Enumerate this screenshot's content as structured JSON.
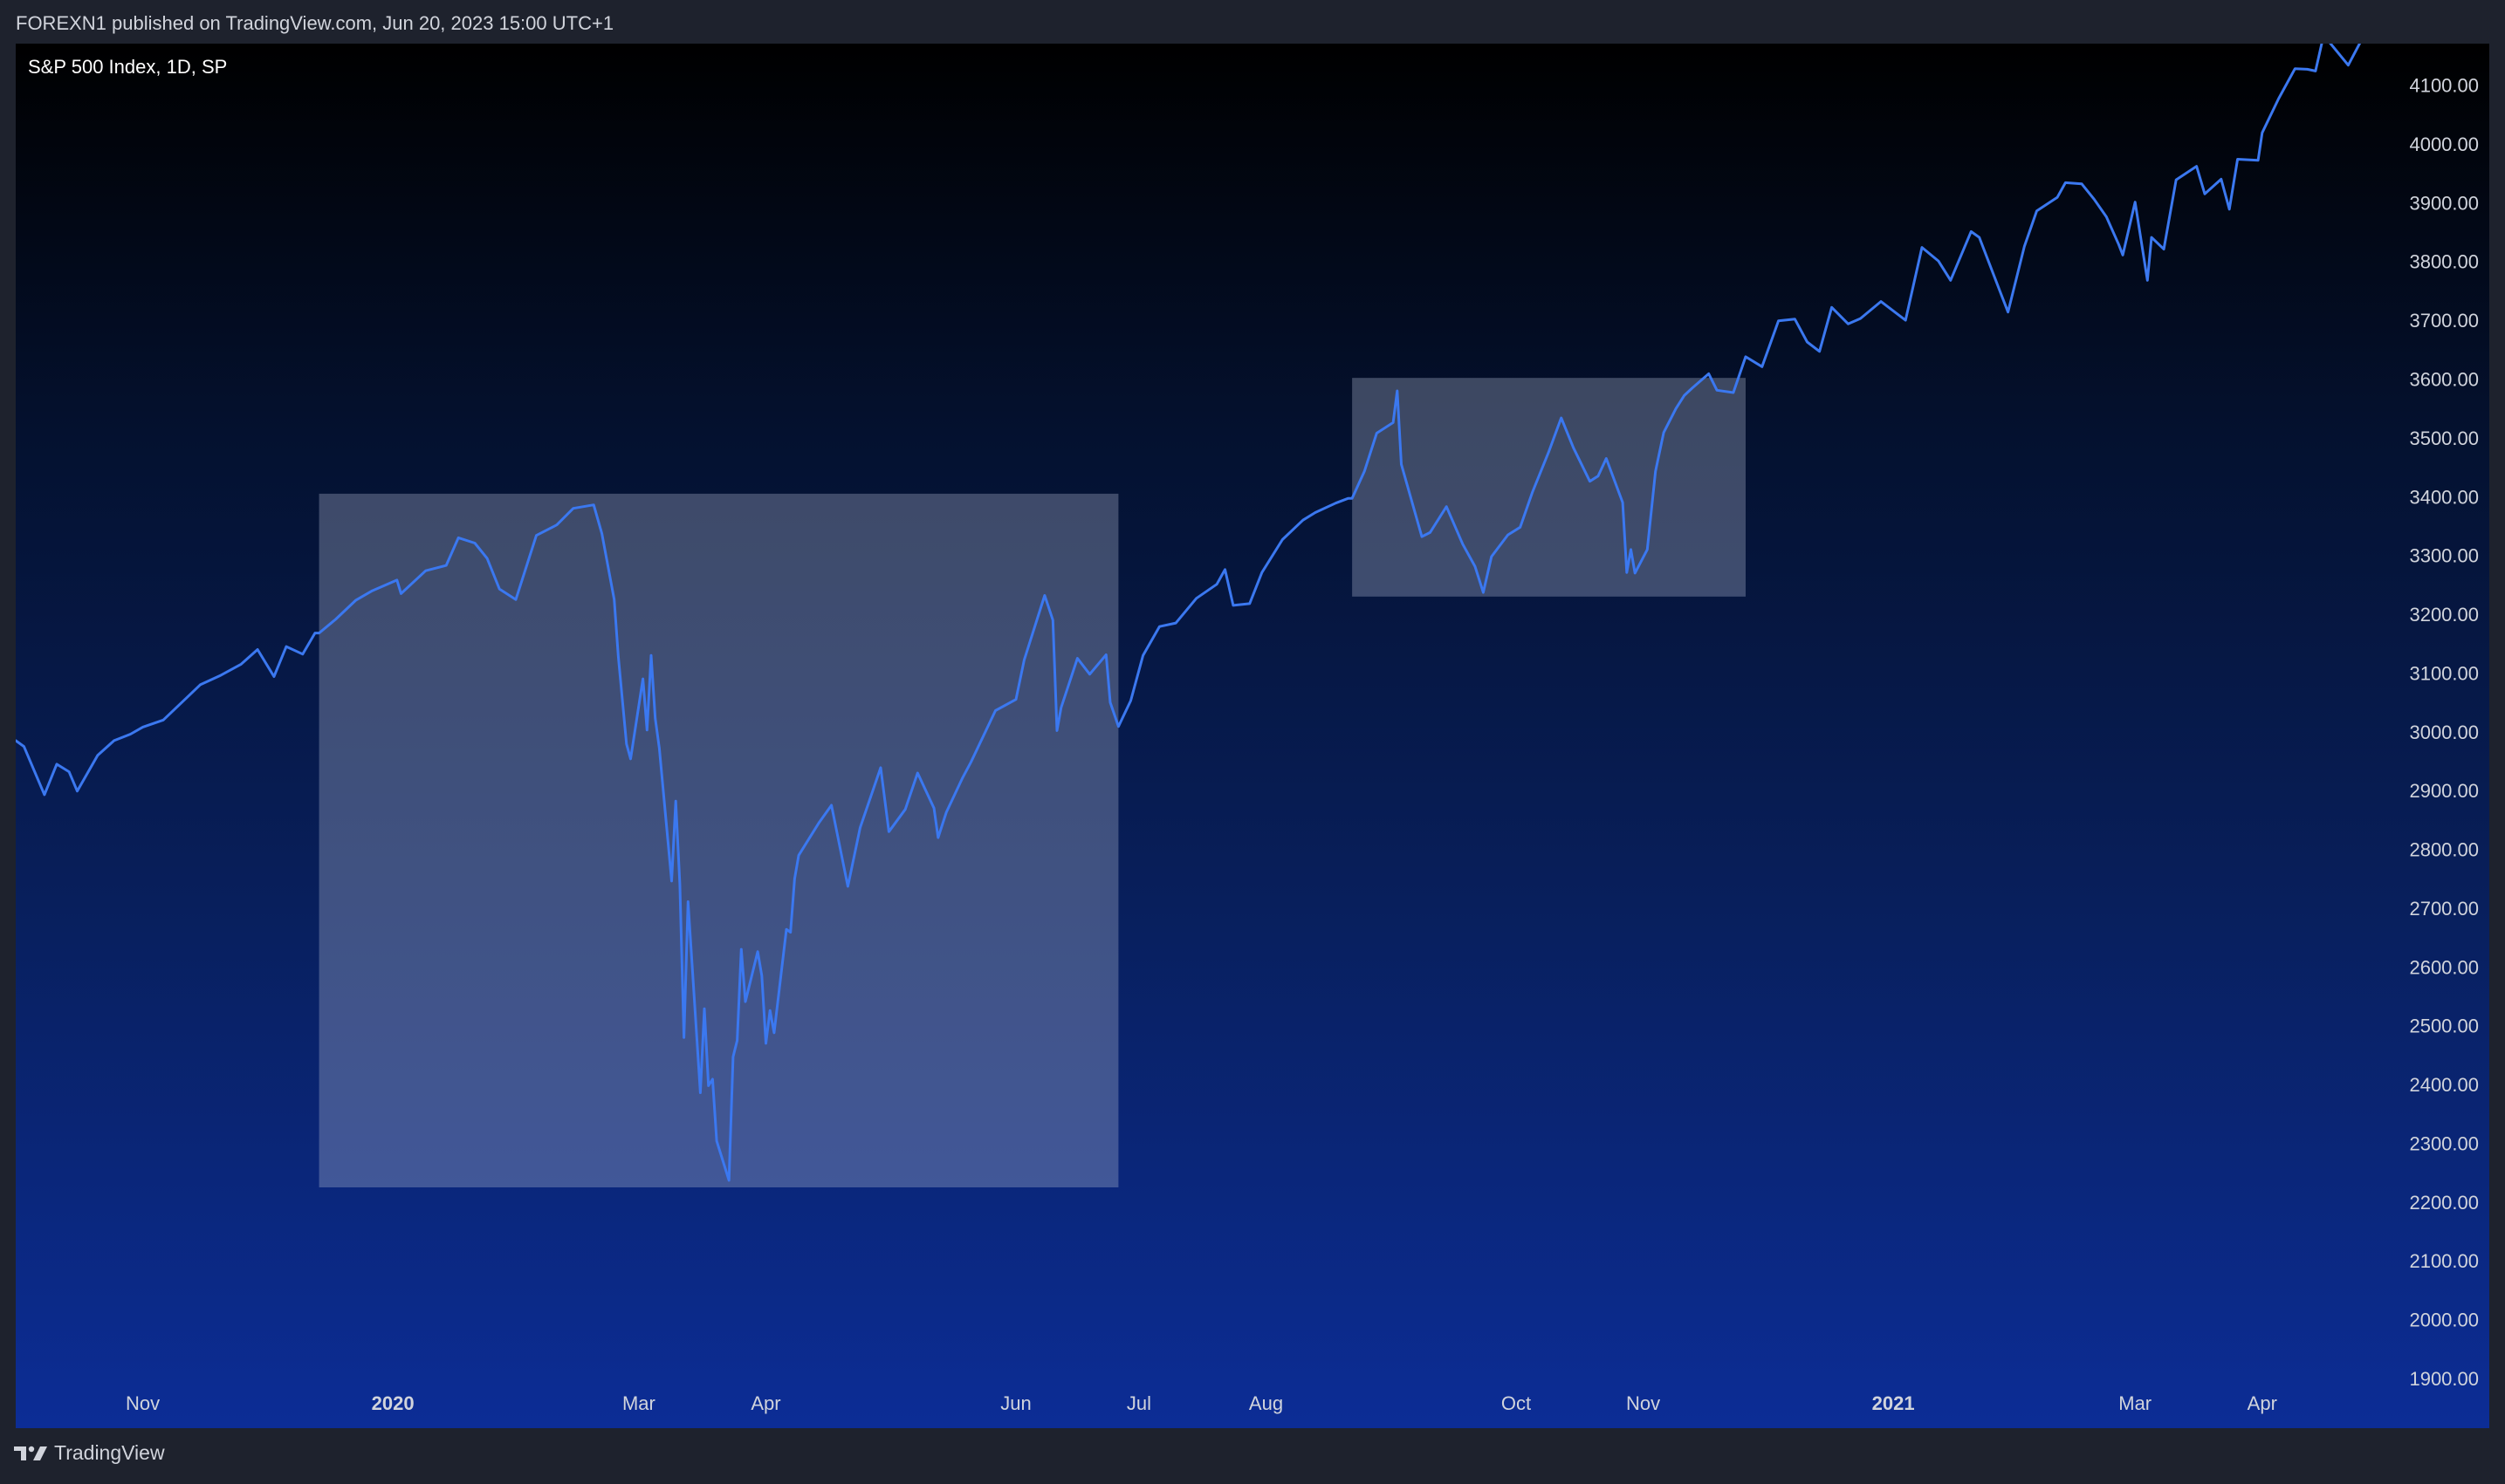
{
  "header": {
    "text": "FOREXN1 published on TradingView.com, Jun 20, 2023 15:00 UTC+1"
  },
  "chart": {
    "symbol_label": "S&P 500 Index, 1D, SP"
  },
  "footer": {
    "brand": "TradingView",
    "logo_icon": "tradingview-logo-icon"
  },
  "colors": {
    "line": "#3b78f0",
    "highlight_box": "rgba(178,187,212,0.33)",
    "axis_text": "#d1d4dc"
  },
  "chart_data": {
    "type": "line",
    "title": "S&P 500 Index, 1D, SP",
    "xlabel": "",
    "ylabel": "",
    "y_ticks": [
      "4100.00",
      "4000.00",
      "3900.00",
      "3800.00",
      "3700.00",
      "3600.00",
      "3500.00",
      "3400.00",
      "3300.00",
      "3200.00",
      "3100.00",
      "3000.00",
      "2900.00",
      "2800.00",
      "2700.00",
      "2600.00",
      "2500.00",
      "2400.00",
      "2300.00",
      "2200.00",
      "2100.00",
      "2000.00",
      "1900.00"
    ],
    "x_ticks": [
      {
        "label": "Nov",
        "date": "2019-11-01",
        "bold": false
      },
      {
        "label": "2020",
        "date": "2020-01-01",
        "bold": true
      },
      {
        "label": "Mar",
        "date": "2020-03-01",
        "bold": false
      },
      {
        "label": "Apr",
        "date": "2020-04-01",
        "bold": false
      },
      {
        "label": "Jun",
        "date": "2020-06-01",
        "bold": false
      },
      {
        "label": "Jul",
        "date": "2020-07-01",
        "bold": false
      },
      {
        "label": "Aug",
        "date": "2020-08-01",
        "bold": false
      },
      {
        "label": "Oct",
        "date": "2020-10-01",
        "bold": false
      },
      {
        "label": "Nov",
        "date": "2020-11-01",
        "bold": false
      },
      {
        "label": "2021",
        "date": "2021-01-01",
        "bold": true
      },
      {
        "label": "Mar",
        "date": "2021-03-01",
        "bold": false
      },
      {
        "label": "Apr",
        "date": "2021-04-01",
        "bold": false
      }
    ],
    "ylim": [
      1900,
      4135
    ],
    "xlim": [
      "2019-10-01",
      "2021-04-30"
    ],
    "highlight_boxes": [
      {
        "x_start": "2019-12-14",
        "x_end": "2020-06-26",
        "y_low": 2225,
        "y_high": 3405
      },
      {
        "x_start": "2020-08-22",
        "x_end": "2020-11-26",
        "y_low": 3230,
        "y_high": 3602
      }
    ],
    "series": [
      {
        "values": [
          [
            "2019-10-01",
            2985
          ],
          [
            "2019-10-03",
            2975
          ],
          [
            "2019-10-08",
            2893
          ],
          [
            "2019-10-11",
            2945
          ],
          [
            "2019-10-14",
            2932
          ],
          [
            "2019-10-16",
            2899
          ],
          [
            "2019-10-21",
            2960
          ],
          [
            "2019-10-25",
            2985
          ],
          [
            "2019-10-29",
            2996
          ],
          [
            "2019-11-01",
            3008
          ],
          [
            "2019-11-06",
            3020
          ],
          [
            "2019-11-12",
            3060
          ],
          [
            "2019-11-15",
            3080
          ],
          [
            "2019-11-20",
            3096
          ],
          [
            "2019-11-25",
            3115
          ],
          [
            "2019-11-29",
            3140
          ],
          [
            "2019-12-03",
            3094
          ],
          [
            "2019-12-06",
            3145
          ],
          [
            "2019-12-10",
            3132
          ],
          [
            "2019-12-13",
            3168
          ],
          [
            "2019-12-14",
            3168
          ],
          [
            "2019-12-18",
            3191
          ],
          [
            "2019-12-23",
            3224
          ],
          [
            "2019-12-27",
            3240
          ],
          [
            "2020-01-02",
            3258
          ],
          [
            "2020-01-03",
            3235
          ],
          [
            "2020-01-09",
            3274
          ],
          [
            "2020-01-14",
            3283
          ],
          [
            "2020-01-17",
            3330
          ],
          [
            "2020-01-21",
            3321
          ],
          [
            "2020-01-24",
            3295
          ],
          [
            "2020-01-27",
            3243
          ],
          [
            "2020-01-31",
            3225
          ],
          [
            "2020-02-05",
            3334
          ],
          [
            "2020-02-10",
            3352
          ],
          [
            "2020-02-14",
            3380
          ],
          [
            "2020-02-19",
            3386
          ],
          [
            "2020-02-21",
            3337
          ],
          [
            "2020-02-24",
            3225
          ],
          [
            "2020-02-25",
            3128
          ],
          [
            "2020-02-27",
            2979
          ],
          [
            "2020-02-28",
            2954
          ],
          [
            "2020-03-02",
            3090
          ],
          [
            "2020-03-03",
            3003
          ],
          [
            "2020-03-04",
            3130
          ],
          [
            "2020-03-05",
            3023
          ],
          [
            "2020-03-06",
            2972
          ],
          [
            "2020-03-09",
            2746
          ],
          [
            "2020-03-10",
            2882
          ],
          [
            "2020-03-11",
            2741
          ],
          [
            "2020-03-12",
            2480
          ],
          [
            "2020-03-13",
            2711
          ],
          [
            "2020-03-16",
            2386
          ],
          [
            "2020-03-17",
            2529
          ],
          [
            "2020-03-18",
            2398
          ],
          [
            "2020-03-19",
            2409
          ],
          [
            "2020-03-20",
            2304
          ],
          [
            "2020-03-23",
            2237
          ],
          [
            "2020-03-24",
            2447
          ],
          [
            "2020-03-25",
            2475
          ],
          [
            "2020-03-26",
            2630
          ],
          [
            "2020-03-27",
            2541
          ],
          [
            "2020-03-30",
            2626
          ],
          [
            "2020-03-31",
            2585
          ],
          [
            "2020-04-01",
            2470
          ],
          [
            "2020-04-02",
            2526
          ],
          [
            "2020-04-03",
            2488
          ],
          [
            "2020-04-06",
            2664
          ],
          [
            "2020-04-07",
            2659
          ],
          [
            "2020-04-08",
            2750
          ],
          [
            "2020-04-09",
            2790
          ],
          [
            "2020-04-14",
            2846
          ],
          [
            "2020-04-17",
            2875
          ],
          [
            "2020-04-21",
            2737
          ],
          [
            "2020-04-24",
            2837
          ],
          [
            "2020-04-29",
            2939
          ],
          [
            "2020-05-01",
            2830
          ],
          [
            "2020-05-05",
            2868
          ],
          [
            "2020-05-08",
            2930
          ],
          [
            "2020-05-12",
            2870
          ],
          [
            "2020-05-13",
            2820
          ],
          [
            "2020-05-15",
            2863
          ],
          [
            "2020-05-19",
            2922
          ],
          [
            "2020-05-21",
            2948
          ],
          [
            "2020-05-27",
            3036
          ],
          [
            "2020-06-01",
            3055
          ],
          [
            "2020-06-03",
            3122
          ],
          [
            "2020-06-08",
            3232
          ],
          [
            "2020-06-10",
            3190
          ],
          [
            "2020-06-11",
            3002
          ],
          [
            "2020-06-12",
            3041
          ],
          [
            "2020-06-16",
            3125
          ],
          [
            "2020-06-19",
            3098
          ],
          [
            "2020-06-23",
            3131
          ],
          [
            "2020-06-24",
            3050
          ],
          [
            "2020-06-26",
            3009
          ],
          [
            "2020-06-29",
            3053
          ],
          [
            "2020-07-02",
            3130
          ],
          [
            "2020-07-06",
            3179
          ],
          [
            "2020-07-10",
            3185
          ],
          [
            "2020-07-15",
            3227
          ],
          [
            "2020-07-20",
            3251
          ],
          [
            "2020-07-22",
            3276
          ],
          [
            "2020-07-24",
            3215
          ],
          [
            "2020-07-28",
            3218
          ],
          [
            "2020-07-31",
            3271
          ],
          [
            "2020-08-05",
            3327
          ],
          [
            "2020-08-10",
            3360
          ],
          [
            "2020-08-13",
            3373
          ],
          [
            "2020-08-18",
            3389
          ],
          [
            "2020-08-21",
            3397
          ],
          [
            "2020-08-22",
            3397
          ],
          [
            "2020-08-25",
            3443
          ],
          [
            "2020-08-28",
            3508
          ],
          [
            "2020-09-01",
            3526
          ],
          [
            "2020-09-02",
            3580
          ],
          [
            "2020-09-03",
            3455
          ],
          [
            "2020-09-08",
            3332
          ],
          [
            "2020-09-10",
            3339
          ],
          [
            "2020-09-14",
            3383
          ],
          [
            "2020-09-18",
            3319
          ],
          [
            "2020-09-21",
            3281
          ],
          [
            "2020-09-23",
            3237
          ],
          [
            "2020-09-25",
            3298
          ],
          [
            "2020-09-29",
            3335
          ],
          [
            "2020-10-02",
            3348
          ],
          [
            "2020-10-05",
            3408
          ],
          [
            "2020-10-09",
            3477
          ],
          [
            "2020-10-12",
            3534
          ],
          [
            "2020-10-15",
            3483
          ],
          [
            "2020-10-19",
            3426
          ],
          [
            "2020-10-21",
            3435
          ],
          [
            "2020-10-23",
            3465
          ],
          [
            "2020-10-27",
            3390
          ],
          [
            "2020-10-28",
            3271
          ],
          [
            "2020-10-29",
            3310
          ],
          [
            "2020-10-30",
            3270
          ],
          [
            "2020-11-02",
            3310
          ],
          [
            "2020-11-04",
            3443
          ],
          [
            "2020-11-06",
            3509
          ],
          [
            "2020-11-09",
            3550
          ],
          [
            "2020-11-11",
            3572
          ],
          [
            "2020-11-13",
            3585
          ],
          [
            "2020-11-17",
            3609
          ],
          [
            "2020-11-19",
            3581
          ],
          [
            "2020-11-23",
            3577
          ],
          [
            "2020-11-26",
            3638
          ],
          [
            "2020-11-30",
            3621
          ],
          [
            "2020-12-04",
            3699
          ],
          [
            "2020-12-08",
            3702
          ],
          [
            "2020-12-11",
            3663
          ],
          [
            "2020-12-14",
            3647
          ],
          [
            "2020-12-17",
            3722
          ],
          [
            "2020-12-21",
            3694
          ],
          [
            "2020-12-24",
            3703
          ],
          [
            "2020-12-29",
            3732
          ],
          [
            "2021-01-04",
            3700
          ],
          [
            "2021-01-08",
            3824
          ],
          [
            "2021-01-12",
            3801
          ],
          [
            "2021-01-15",
            3768
          ],
          [
            "2021-01-20",
            3851
          ],
          [
            "2021-01-22",
            3841
          ],
          [
            "2021-01-27",
            3750
          ],
          [
            "2021-01-29",
            3714
          ],
          [
            "2021-02-02",
            3826
          ],
          [
            "2021-02-05",
            3886
          ],
          [
            "2021-02-10",
            3909
          ],
          [
            "2021-02-12",
            3934
          ],
          [
            "2021-02-16",
            3932
          ],
          [
            "2021-02-19",
            3906
          ],
          [
            "2021-02-22",
            3876
          ],
          [
            "2021-02-25",
            3829
          ],
          [
            "2021-02-26",
            3811
          ],
          [
            "2021-03-01",
            3901
          ],
          [
            "2021-03-04",
            3768
          ],
          [
            "2021-03-05",
            3841
          ],
          [
            "2021-03-08",
            3821
          ],
          [
            "2021-03-11",
            3939
          ],
          [
            "2021-03-16",
            3962
          ],
          [
            "2021-03-18",
            3915
          ],
          [
            "2021-03-22",
            3940
          ],
          [
            "2021-03-24",
            3889
          ],
          [
            "2021-03-26",
            3974
          ],
          [
            "2021-03-31",
            3972
          ],
          [
            "2021-04-01",
            4019
          ],
          [
            "2021-04-05",
            4077
          ],
          [
            "2021-04-09",
            4128
          ],
          [
            "2021-04-12",
            4127
          ],
          [
            "2021-04-14",
            4124
          ],
          [
            "2021-04-16",
            4185
          ],
          [
            "2021-04-22",
            4134
          ],
          [
            "2021-04-26",
            4187
          ]
        ]
      }
    ],
    "grid": false,
    "legend": "none"
  }
}
